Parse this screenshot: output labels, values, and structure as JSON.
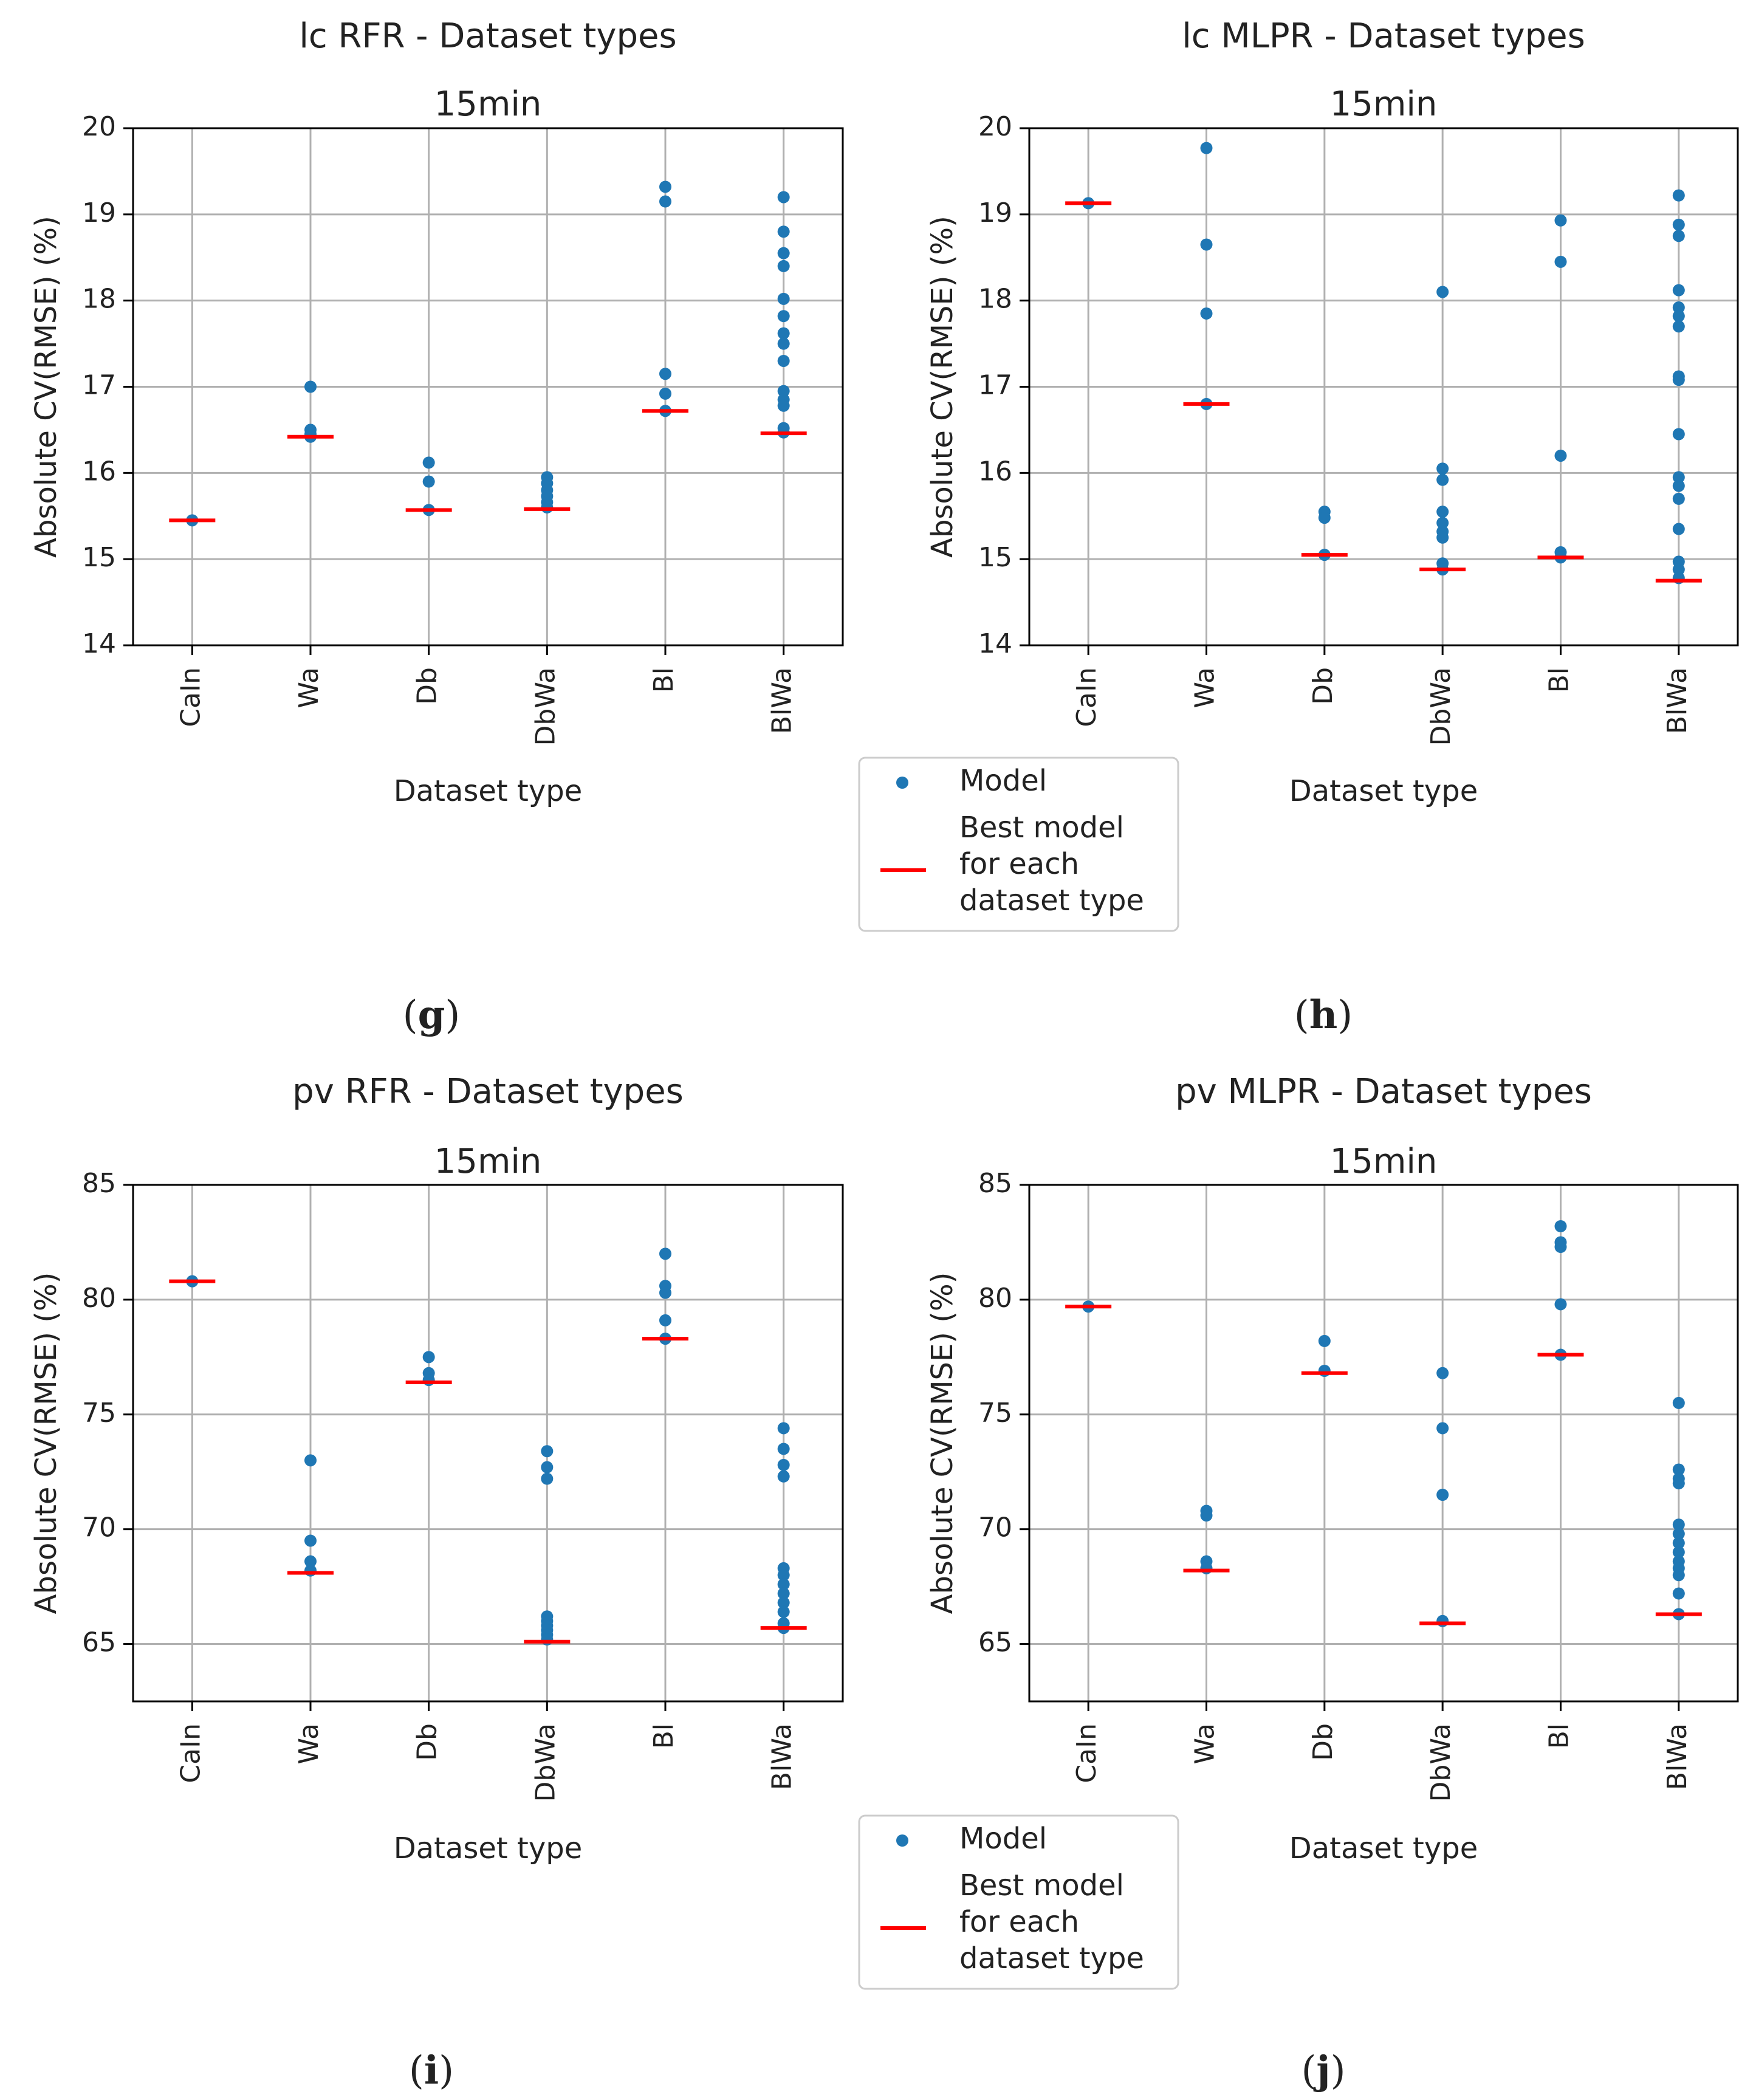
{
  "figure": {
    "panel_labels": [
      "(g)",
      "(h)",
      "(i)",
      "(j)"
    ],
    "legend": {
      "model_label": "Model",
      "best_label_lines": [
        "Best model",
        "for each",
        "dataset type"
      ]
    },
    "colors": {
      "model_point": "#1f77b4",
      "best_line": "#ff0000",
      "grid": "#b0b0b0",
      "axes": "#000000"
    }
  },
  "chart_data": [
    {
      "type": "scatter",
      "title": "lc RFR - Dataset types",
      "subtitle": "15min",
      "xlabel": "Dataset type",
      "ylabel": "Absolute CV(RMSE) (%)",
      "categories": [
        "CaIn",
        "Wa",
        "Db",
        "DbWa",
        "Bl",
        "BlWa"
      ],
      "ylim": [
        14,
        20
      ],
      "yticks": [
        14,
        15,
        16,
        17,
        18,
        19,
        20
      ],
      "grid": true,
      "series": [
        {
          "name": "Model",
          "points": [
            [
              [
                15.45
              ]
            ],
            [
              [
                17.0,
                16.5,
                16.45,
                16.42
              ]
            ],
            [
              [
                16.12,
                15.9,
                15.57
              ]
            ],
            [
              [
                15.95,
                15.88,
                15.8,
                15.73,
                15.66,
                15.6
              ]
            ],
            [
              [
                19.32,
                19.15,
                17.15,
                16.92,
                16.72
              ]
            ],
            [
              [
                19.2,
                18.8,
                18.55,
                18.4,
                18.02,
                17.82,
                17.62,
                17.5,
                17.3,
                16.95,
                16.85,
                16.78,
                16.52,
                16.47
              ]
            ]
          ]
        },
        {
          "name": "Best model for each dataset type",
          "values": [
            15.45,
            16.42,
            15.57,
            15.58,
            16.72,
            16.46
          ]
        }
      ]
    },
    {
      "type": "scatter",
      "title": "lc MLPR - Dataset types",
      "subtitle": "15min",
      "xlabel": "Dataset type",
      "ylabel": "Absolute CV(RMSE) (%)",
      "categories": [
        "CaIn",
        "Wa",
        "Db",
        "DbWa",
        "Bl",
        "BlWa"
      ],
      "ylim": [
        14,
        20
      ],
      "yticks": [
        14,
        15,
        16,
        17,
        18,
        19,
        20
      ],
      "grid": true,
      "series": [
        {
          "name": "Model",
          "points": [
            [
              [
                19.13
              ]
            ],
            [
              [
                19.77,
                18.65,
                17.85,
                16.8
              ]
            ],
            [
              [
                15.55,
                15.48,
                15.05
              ]
            ],
            [
              [
                18.1,
                16.05,
                15.92,
                15.55,
                15.42,
                15.32,
                15.25,
                14.95,
                14.88
              ]
            ],
            [
              [
                18.93,
                18.45,
                16.2,
                15.08,
                15.02
              ]
            ],
            [
              [
                19.22,
                18.88,
                18.75,
                18.12,
                17.92,
                17.82,
                17.7,
                17.12,
                17.08,
                16.45,
                15.95,
                15.85,
                15.7,
                15.35,
                14.97,
                14.88,
                14.78
              ]
            ]
          ]
        },
        {
          "name": "Best model for each dataset type",
          "values": [
            19.13,
            16.8,
            15.05,
            14.88,
            15.02,
            14.75
          ]
        }
      ]
    },
    {
      "type": "scatter",
      "title": "pv RFR - Dataset types",
      "subtitle": "15min",
      "xlabel": "Dataset type",
      "ylabel": "Absolute CV(RMSE) (%)",
      "categories": [
        "CaIn",
        "Wa",
        "Db",
        "DbWa",
        "Bl",
        "BlWa"
      ],
      "ylim": [
        62.5,
        85
      ],
      "yticks": [
        65,
        70,
        75,
        80,
        85
      ],
      "grid": true,
      "series": [
        {
          "name": "Model",
          "points": [
            [
              [
                80.8
              ]
            ],
            [
              [
                73.0,
                69.5,
                68.6,
                68.2
              ]
            ],
            [
              [
                77.5,
                76.8,
                76.5
              ]
            ],
            [
              [
                73.4,
                72.7,
                72.2,
                66.2,
                66.0,
                65.8,
                65.6,
                65.4,
                65.2
              ]
            ],
            [
              [
                82.0,
                80.6,
                80.3,
                79.1,
                78.3
              ]
            ],
            [
              [
                74.4,
                73.5,
                72.8,
                72.3,
                68.3,
                68.0,
                67.6,
                67.2,
                66.8,
                66.4,
                65.9,
                65.7
              ]
            ]
          ]
        },
        {
          "name": "Best model for each dataset type",
          "values": [
            80.8,
            68.1,
            76.4,
            65.1,
            78.3,
            65.7
          ]
        }
      ]
    },
    {
      "type": "scatter",
      "title": "pv MLPR - Dataset types",
      "subtitle": "15min",
      "xlabel": "Dataset type",
      "ylabel": "Absolute CV(RMSE) (%)",
      "categories": [
        "CaIn",
        "Wa",
        "Db",
        "DbWa",
        "Bl",
        "BlWa"
      ],
      "ylim": [
        62.5,
        85
      ],
      "yticks": [
        65,
        70,
        75,
        80,
        85
      ],
      "grid": true,
      "series": [
        {
          "name": "Model",
          "points": [
            [
              [
                79.7
              ]
            ],
            [
              [
                70.8,
                70.6,
                68.6,
                68.3
              ]
            ],
            [
              [
                78.2,
                76.9
              ]
            ],
            [
              [
                76.8,
                74.4,
                71.5,
                66.0
              ]
            ],
            [
              [
                83.2,
                82.5,
                82.3,
                79.8,
                77.6
              ]
            ],
            [
              [
                75.5,
                72.6,
                72.2,
                72.0,
                70.2,
                69.8,
                69.4,
                69.0,
                68.6,
                68.3,
                68.0,
                67.2,
                66.3
              ]
            ]
          ]
        },
        {
          "name": "Best model for each dataset type",
          "values": [
            79.7,
            68.2,
            76.8,
            65.9,
            77.6,
            66.3
          ]
        }
      ]
    }
  ]
}
